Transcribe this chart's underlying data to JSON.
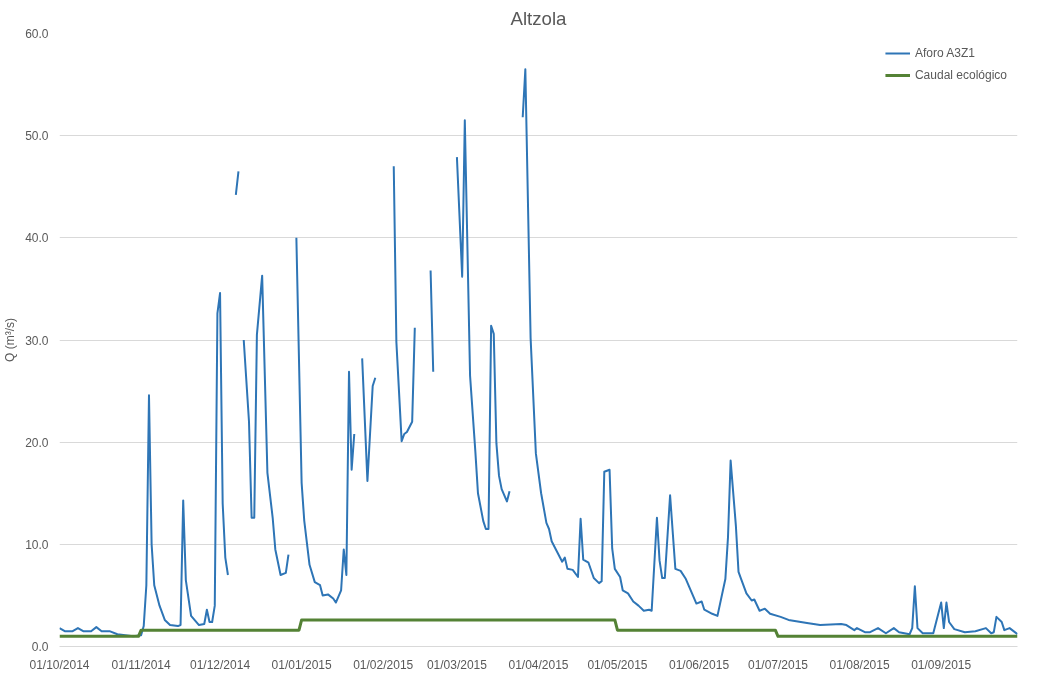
{
  "chart_data": {
    "type": "line",
    "title": "Altzola",
    "ylabel": "Q (m³/s)",
    "xlim": [
      "2014-10-01",
      "2015-09-30"
    ],
    "xticks": [
      {
        "value": "2014-10-01",
        "label": "01/10/2014"
      },
      {
        "value": "2014-11-01",
        "label": "01/11/2014"
      },
      {
        "value": "2014-12-01",
        "label": "01/12/2014"
      },
      {
        "value": "2015-01-01",
        "label": "01/01/2015"
      },
      {
        "value": "2015-02-01",
        "label": "01/02/2015"
      },
      {
        "value": "2015-03-01",
        "label": "01/03/2015"
      },
      {
        "value": "2015-04-01",
        "label": "01/04/2015"
      },
      {
        "value": "2015-05-01",
        "label": "01/05/2015"
      },
      {
        "value": "2015-06-01",
        "label": "01/06/2015"
      },
      {
        "value": "2015-07-01",
        "label": "01/07/2015"
      },
      {
        "value": "2015-08-01",
        "label": "01/08/2015"
      },
      {
        "value": "2015-09-01",
        "label": "01/09/2015"
      }
    ],
    "ylim": [
      0,
      60
    ],
    "yticks": [
      {
        "value": 0,
        "label": "0.0"
      },
      {
        "value": 10,
        "label": "10.0"
      },
      {
        "value": 20,
        "label": "20.0"
      },
      {
        "value": 30,
        "label": "30.0"
      },
      {
        "value": 40,
        "label": "40.0"
      },
      {
        "value": 50,
        "label": "50.0"
      },
      {
        "value": 60,
        "label": "60.0"
      }
    ],
    "grid": "y",
    "legend": "top right",
    "series": [
      {
        "name": "Aforo A3Z1",
        "color": "#2e75b6",
        "x": [
          "2014-10-01",
          "2014-10-03",
          "2014-10-06",
          "2014-10-08",
          "2014-10-10",
          "2014-10-13",
          "2014-10-15",
          "2014-10-17",
          "2014-10-20",
          "2014-10-23",
          "2014-10-26",
          "2014-10-29",
          "2014-11-01",
          "2014-11-02",
          "2014-11-03",
          "2014-11-04",
          "2014-11-05",
          "2014-11-06",
          "2014-11-08",
          "2014-11-10",
          "2014-11-12",
          "2014-11-15",
          "2014-11-16",
          "2014-11-17",
          "2014-11-18",
          "2014-11-20",
          "2014-11-23",
          "2014-11-25",
          "2014-11-26",
          "2014-11-27",
          "2014-11-28",
          "2014-11-29",
          "2014-11-30",
          "2014-12-01",
          "2014-12-02",
          "2014-12-03",
          "2014-12-04",
          "2014-12-05",
          "2014-12-06",
          "2014-12-07",
          "2014-12-08",
          "2014-12-09",
          "2014-12-10",
          "2014-12-12",
          "2014-12-13",
          "2014-12-14",
          "2014-12-15",
          "2014-12-17",
          "2014-12-19",
          "2014-12-21",
          "2014-12-22",
          "2014-12-24",
          "2014-12-26",
          "2014-12-27",
          "2014-12-28",
          "2014-12-29",
          "2014-12-30",
          "2015-01-01",
          "2015-01-02",
          "2015-01-04",
          "2015-01-06",
          "2015-01-08",
          "2015-01-09",
          "2015-01-11",
          "2015-01-13",
          "2015-01-14",
          "2015-01-16",
          "2015-01-17",
          "2015-01-18",
          "2015-01-19",
          "2015-01-20",
          "2015-01-21",
          "2015-01-22",
          "2015-01-23",
          "2015-01-24",
          "2015-01-26",
          "2015-01-28",
          "2015-01-29",
          "2015-01-30",
          "2015-02-02",
          "2015-02-04",
          "2015-02-05",
          "2015-02-06",
          "2015-02-08",
          "2015-02-09",
          "2015-02-10",
          "2015-02-12",
          "2015-02-13",
          "2015-02-14",
          "2015-02-18",
          "2015-02-19",
          "2015-02-20",
          "2015-02-21",
          "2015-02-25",
          "2015-02-28",
          "2015-03-01",
          "2015-03-03",
          "2015-03-04",
          "2015-03-06",
          "2015-03-08",
          "2015-03-09",
          "2015-03-11",
          "2015-03-12",
          "2015-03-13",
          "2015-03-14",
          "2015-03-15",
          "2015-03-16",
          "2015-03-17",
          "2015-03-18",
          "2015-03-20",
          "2015-03-21",
          "2015-03-23",
          "2015-03-25",
          "2015-03-26",
          "2015-03-27",
          "2015-03-29",
          "2015-03-31",
          "2015-04-02",
          "2015-04-04",
          "2015-04-05",
          "2015-04-06",
          "2015-04-08",
          "2015-04-10",
          "2015-04-11",
          "2015-04-12",
          "2015-04-14",
          "2015-04-16",
          "2015-04-17",
          "2015-04-18",
          "2015-04-20",
          "2015-04-22",
          "2015-04-24",
          "2015-04-25",
          "2015-04-26",
          "2015-04-28",
          "2015-04-29",
          "2015-04-30",
          "2015-05-02",
          "2015-05-03",
          "2015-05-05",
          "2015-05-07",
          "2015-05-09",
          "2015-05-11",
          "2015-05-13",
          "2015-05-14",
          "2015-05-16",
          "2015-05-17",
          "2015-05-18",
          "2015-05-19",
          "2015-05-21",
          "2015-05-23",
          "2015-05-25",
          "2015-05-27",
          "2015-05-29",
          "2015-05-31",
          "2015-06-02",
          "2015-06-03",
          "2015-06-06",
          "2015-06-08",
          "2015-06-11",
          "2015-06-12",
          "2015-06-13",
          "2015-06-15",
          "2015-06-16",
          "2015-06-17",
          "2015-06-19",
          "2015-06-21",
          "2015-06-22",
          "2015-06-24",
          "2015-06-26",
          "2015-06-28",
          "2015-07-02",
          "2015-07-05",
          "2015-07-12",
          "2015-07-17",
          "2015-07-25",
          "2015-07-27",
          "2015-07-30",
          "2015-07-31",
          "2015-08-03",
          "2015-08-05",
          "2015-08-08",
          "2015-08-11",
          "2015-08-14",
          "2015-08-16",
          "2015-08-20",
          "2015-08-21",
          "2015-08-22",
          "2015-08-23",
          "2015-08-25",
          "2015-08-29",
          "2015-09-01",
          "2015-09-02",
          "2015-09-03",
          "2015-09-04",
          "2015-09-06",
          "2015-09-10",
          "2015-09-14",
          "2015-09-18",
          "2015-09-20",
          "2015-09-21",
          "2015-09-22",
          "2015-09-24",
          "2015-09-25",
          "2015-09-27",
          "2015-09-30"
        ],
        "values": [
          1.8,
          1.5,
          1.5,
          1.8,
          1.5,
          1.5,
          1.9,
          1.5,
          1.5,
          1.2,
          1.1,
          1.0,
          1.1,
          2.0,
          6.0,
          24.6,
          10.0,
          6.0,
          4.0,
          2.6,
          2.1,
          2.0,
          2.1,
          14.3,
          6.5,
          3.0,
          2.1,
          2.2,
          3.6,
          2.4,
          2.4,
          4.0,
          32.6,
          34.6,
          14.0,
          8.7,
          7.0,
          null,
          null,
          44.2,
          46.5,
          null,
          30.0,
          22.0,
          12.6,
          12.6,
          30.5,
          36.3,
          17.0,
          12.6,
          9.5,
          7.0,
          7.2,
          9.0,
          null,
          null,
          40.0,
          16.0,
          12.3,
          8.0,
          6.3,
          6.0,
          5.0,
          5.1,
          4.7,
          4.3,
          5.5,
          9.5,
          7.0,
          26.9,
          17.3,
          20.8,
          null,
          null,
          28.2,
          16.2,
          25.5,
          26.3,
          null,
          null,
          null,
          47.0,
          29.8,
          20.1,
          20.8,
          21.0,
          22.0,
          31.2,
          null,
          null,
          36.8,
          26.9,
          null,
          null,
          null,
          47.9,
          36.2,
          51.5,
          26.5,
          19.1,
          15.0,
          12.3,
          11.5,
          11.5,
          31.4,
          30.6,
          19.9,
          16.7,
          15.4,
          14.2,
          15.2,
          null,
          null,
          51.8,
          56.5,
          30.2,
          18.9,
          15.0,
          12.1,
          11.5,
          10.3,
          9.3,
          8.3,
          8.7,
          7.6,
          7.5,
          6.8,
          12.5,
          8.5,
          8.2,
          6.7,
          6.2,
          6.4,
          17.1,
          17.3,
          9.6,
          7.6,
          6.8,
          5.5,
          5.2,
          4.4,
          4.0,
          3.5,
          3.6,
          3.5,
          12.6,
          8.4,
          6.7,
          6.7,
          14.8,
          7.6,
          7.4,
          6.6,
          5.4,
          4.2,
          4.4,
          3.6,
          3.2,
          3.0,
          6.6,
          10.7,
          18.2,
          11.8,
          7.3,
          6.6,
          5.2,
          4.5,
          4.6,
          3.5,
          3.7,
          3.2,
          2.9,
          2.6,
          2.3,
          2.1,
          2.2,
          2.1,
          1.6,
          1.8,
          1.4,
          1.4,
          1.8,
          1.3,
          1.8,
          1.4,
          1.2,
          1.8,
          5.9,
          1.8,
          1.3,
          1.3,
          4.3,
          1.8,
          4.3,
          2.4,
          1.7,
          1.4,
          1.5,
          1.8,
          1.3,
          1.4,
          2.9,
          2.4,
          1.6,
          1.8,
          1.2
        ]
      },
      {
        "name": "Caudal ecológico",
        "color": "#548235",
        "x": [
          "2014-10-01",
          "2014-10-31",
          "2014-11-01",
          "2014-12-31",
          "2015-01-01",
          "2015-04-30",
          "2015-05-01",
          "2015-06-30",
          "2015-07-01",
          "2015-09-30"
        ],
        "values": [
          1.0,
          1.0,
          1.6,
          1.6,
          2.6,
          2.6,
          1.6,
          1.6,
          1.0,
          1.0
        ]
      }
    ]
  }
}
